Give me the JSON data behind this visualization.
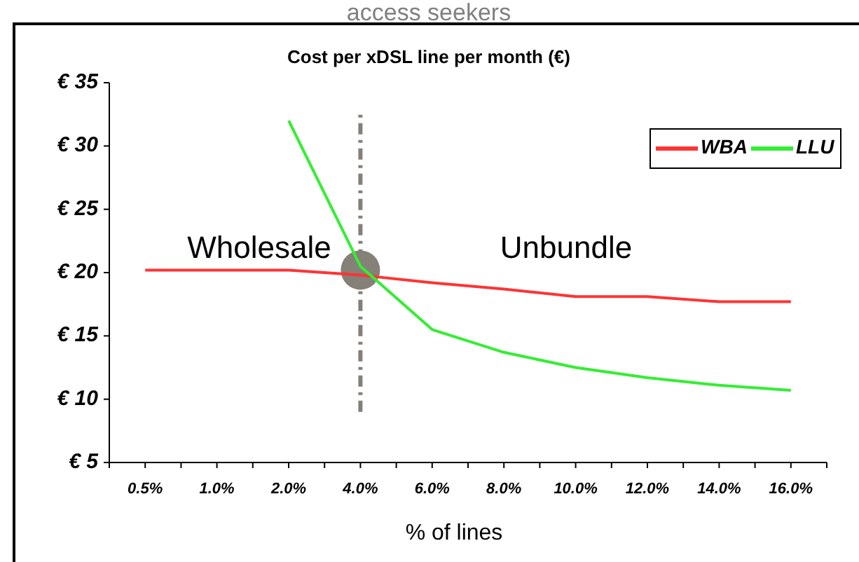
{
  "chart_data": {
    "type": "line",
    "title": "Cost per xDSL line per month (€)",
    "xlabel": "% of lines",
    "annotations": [
      "access seekers",
      "Wholesale",
      "Unbundle"
    ],
    "categories": [
      "0.5%",
      "1.0%",
      "2.0%",
      "4.0%",
      "6.0%",
      "8.0%",
      "10.0%",
      "12.0%",
      "14.0%",
      "16.0%"
    ],
    "series": [
      {
        "name": "WBA",
        "color": "#ff3333",
        "values": [
          20.2,
          20.2,
          20.2,
          19.8,
          19.2,
          18.7,
          18.1,
          18.1,
          17.7,
          17.7
        ]
      },
      {
        "name": "LLU",
        "color": "#33ee33",
        "values": [
          null,
          null,
          32,
          20.5,
          15.5,
          13.7,
          12.5,
          11.7,
          11.1,
          10.7
        ]
      },
      {
        "type": "scatter",
        "color": "#858078",
        "x": [
          "4.0%"
        ],
        "values": [
          20.2
        ],
        "marker": "circle"
      }
    ],
    "ylim": [
      5,
      35
    ],
    "yticks": [
      {
        "value": 5,
        "label": "€ 5"
      },
      {
        "value": 10,
        "label": "€ 10"
      },
      {
        "value": 15,
        "label": "€ 15"
      },
      {
        "value": 20,
        "label": "€ 20"
      },
      {
        "value": 25,
        "label": "€ 25"
      },
      {
        "value": 30,
        "label": "€ 30"
      },
      {
        "value": 35,
        "label": "€ 35"
      }
    ],
    "ref_lines": [
      {
        "axis": "x",
        "value": "4.0%",
        "color": "#857f7a",
        "line_style": "dashdot"
      }
    ],
    "grid": false,
    "legend": "top right",
    "line_style": "solid"
  }
}
